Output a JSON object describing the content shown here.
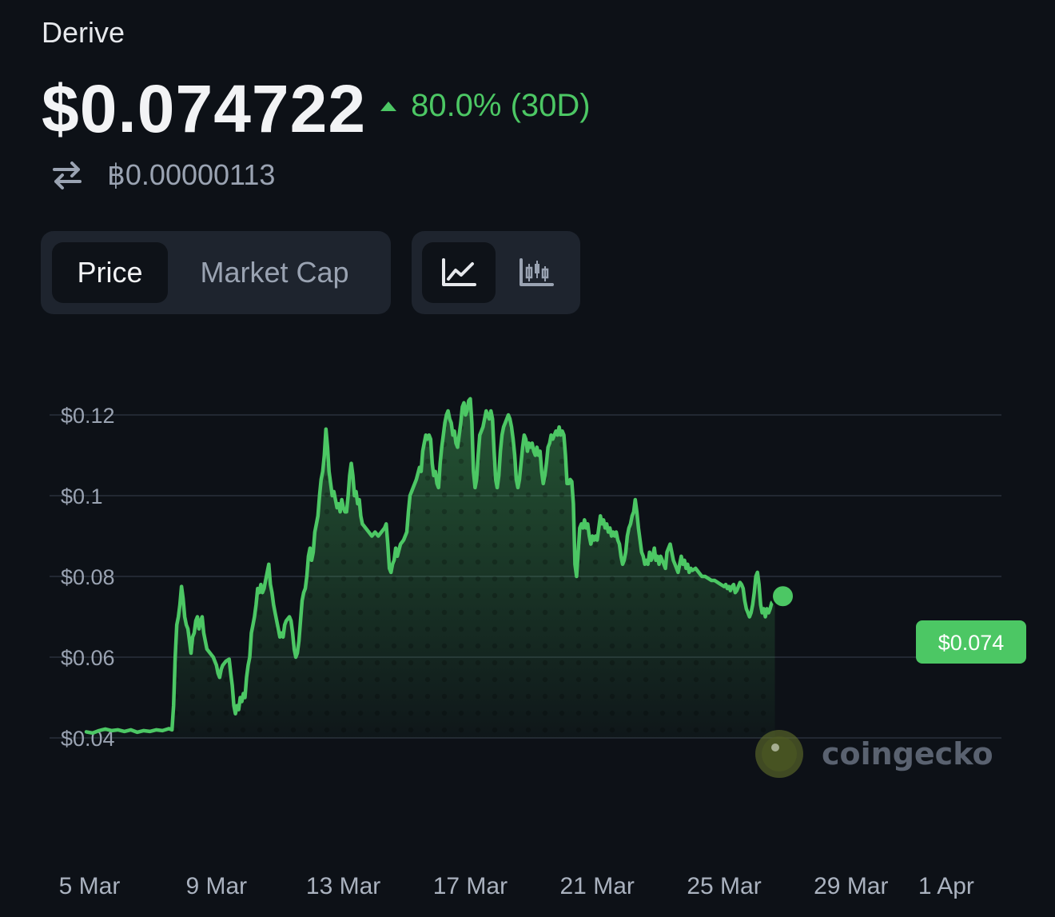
{
  "header": {
    "coin_name": "Derive",
    "price": "$0.074722",
    "change": "80.0% (30D)",
    "btc_price": "฿0.00000113"
  },
  "tabs": {
    "metric": [
      {
        "label": "Price",
        "active": true
      },
      {
        "label": "Market Cap",
        "active": false
      }
    ],
    "chart_type": [
      {
        "icon": "line-chart-icon",
        "active": true
      },
      {
        "icon": "candlestick-chart-icon",
        "active": false
      }
    ]
  },
  "watermark": "coingecko",
  "colors": {
    "accent": "#4cc764",
    "background": "#0d1117"
  },
  "chart_data": {
    "type": "area",
    "y_ticks": [
      {
        "value": 0.12,
        "label": "$0.12"
      },
      {
        "value": 0.1,
        "label": "$0.1"
      },
      {
        "value": 0.08,
        "label": "$0.08"
      },
      {
        "value": 0.06,
        "label": "$0.06"
      },
      {
        "value": 0.04,
        "label": "$0.04"
      }
    ],
    "x_ticks": [
      {
        "day": 0,
        "label": "5 Mar"
      },
      {
        "day": 4,
        "label": "9 Mar"
      },
      {
        "day": 8,
        "label": "13 Mar"
      },
      {
        "day": 12,
        "label": "17 Mar"
      },
      {
        "day": 16,
        "label": "21 Mar"
      },
      {
        "day": 20,
        "label": "25 Mar"
      },
      {
        "day": 24,
        "label": "29 Mar"
      },
      {
        "day": 27,
        "label": "1 Apr"
      }
    ],
    "ylim": [
      0.04,
      0.12
    ],
    "grid": true,
    "current_label": "$0.074",
    "points": [
      [
        -0.1,
        0.0415
      ],
      [
        0.1,
        0.0412
      ],
      [
        0.3,
        0.0418
      ],
      [
        0.5,
        0.0422
      ],
      [
        0.7,
        0.0418
      ],
      [
        0.9,
        0.042
      ],
      [
        1.1,
        0.0416
      ],
      [
        1.3,
        0.042
      ],
      [
        1.5,
        0.0414
      ],
      [
        1.7,
        0.0418
      ],
      [
        1.9,
        0.0416
      ],
      [
        2.1,
        0.042
      ],
      [
        2.3,
        0.0418
      ],
      [
        2.5,
        0.0423
      ],
      [
        2.6,
        0.042
      ],
      [
        2.65,
        0.048
      ],
      [
        2.7,
        0.06
      ],
      [
        2.75,
        0.068
      ],
      [
        2.8,
        0.07
      ],
      [
        2.85,
        0.073
      ],
      [
        2.9,
        0.0775
      ],
      [
        2.95,
        0.0745
      ],
      [
        3.0,
        0.07
      ],
      [
        3.05,
        0.068
      ],
      [
        3.1,
        0.067
      ],
      [
        3.15,
        0.064
      ],
      [
        3.2,
        0.061
      ],
      [
        3.25,
        0.065
      ],
      [
        3.3,
        0.066
      ],
      [
        3.35,
        0.069
      ],
      [
        3.4,
        0.07
      ],
      [
        3.45,
        0.067
      ],
      [
        3.5,
        0.069
      ],
      [
        3.55,
        0.07
      ],
      [
        3.6,
        0.066
      ],
      [
        3.65,
        0.064
      ],
      [
        3.7,
        0.062
      ],
      [
        3.8,
        0.061
      ],
      [
        3.9,
        0.06
      ],
      [
        4.0,
        0.058
      ],
      [
        4.05,
        0.056
      ],
      [
        4.1,
        0.055
      ],
      [
        4.15,
        0.057
      ],
      [
        4.2,
        0.058
      ],
      [
        4.3,
        0.059
      ],
      [
        4.4,
        0.0595
      ],
      [
        4.45,
        0.056
      ],
      [
        4.5,
        0.053
      ],
      [
        4.55,
        0.048
      ],
      [
        4.6,
        0.046
      ],
      [
        4.65,
        0.048
      ],
      [
        4.7,
        0.047
      ],
      [
        4.75,
        0.05
      ],
      [
        4.8,
        0.049
      ],
      [
        4.85,
        0.051
      ],
      [
        4.9,
        0.05
      ],
      [
        4.95,
        0.055
      ],
      [
        5.0,
        0.058
      ],
      [
        5.05,
        0.06
      ],
      [
        5.1,
        0.066
      ],
      [
        5.15,
        0.068
      ],
      [
        5.2,
        0.07
      ],
      [
        5.25,
        0.073
      ],
      [
        5.3,
        0.077
      ],
      [
        5.35,
        0.076
      ],
      [
        5.4,
        0.078
      ],
      [
        5.45,
        0.076
      ],
      [
        5.5,
        0.077
      ],
      [
        5.55,
        0.079
      ],
      [
        5.6,
        0.081
      ],
      [
        5.65,
        0.083
      ],
      [
        5.7,
        0.078
      ],
      [
        5.75,
        0.076
      ],
      [
        5.8,
        0.073
      ],
      [
        5.85,
        0.071
      ],
      [
        5.9,
        0.069
      ],
      [
        5.95,
        0.067
      ],
      [
        6.0,
        0.065
      ],
      [
        6.05,
        0.066
      ],
      [
        6.1,
        0.065
      ],
      [
        6.15,
        0.068
      ],
      [
        6.2,
        0.069
      ],
      [
        6.3,
        0.07
      ],
      [
        6.35,
        0.069
      ],
      [
        6.4,
        0.066
      ],
      [
        6.45,
        0.062
      ],
      [
        6.5,
        0.06
      ],
      [
        6.55,
        0.061
      ],
      [
        6.6,
        0.064
      ],
      [
        6.65,
        0.069
      ],
      [
        6.7,
        0.074
      ],
      [
        6.75,
        0.076
      ],
      [
        6.8,
        0.077
      ],
      [
        6.85,
        0.08
      ],
      [
        6.9,
        0.085
      ],
      [
        6.95,
        0.087
      ],
      [
        7.0,
        0.084
      ],
      [
        7.05,
        0.086
      ],
      [
        7.1,
        0.091
      ],
      [
        7.15,
        0.093
      ],
      [
        7.2,
        0.095
      ],
      [
        7.25,
        0.1
      ],
      [
        7.3,
        0.104
      ],
      [
        7.35,
        0.106
      ],
      [
        7.4,
        0.11
      ],
      [
        7.45,
        0.1165
      ],
      [
        7.5,
        0.112
      ],
      [
        7.55,
        0.106
      ],
      [
        7.6,
        0.103
      ],
      [
        7.65,
        0.1
      ],
      [
        7.7,
        0.101
      ],
      [
        7.75,
        0.099
      ],
      [
        7.8,
        0.097
      ],
      [
        7.85,
        0.098
      ],
      [
        7.9,
        0.096
      ],
      [
        7.95,
        0.099
      ],
      [
        8.0,
        0.097
      ],
      [
        8.05,
        0.096
      ],
      [
        8.1,
        0.096
      ],
      [
        8.15,
        0.1
      ],
      [
        8.2,
        0.105
      ],
      [
        8.25,
        0.108
      ],
      [
        8.3,
        0.105
      ],
      [
        8.35,
        0.1
      ],
      [
        8.4,
        0.101
      ],
      [
        8.45,
        0.098
      ],
      [
        8.5,
        0.099
      ],
      [
        8.55,
        0.095
      ],
      [
        8.6,
        0.093
      ],
      [
        8.7,
        0.092
      ],
      [
        8.8,
        0.091
      ],
      [
        8.9,
        0.09
      ],
      [
        9.0,
        0.091
      ],
      [
        9.1,
        0.09
      ],
      [
        9.2,
        0.091
      ],
      [
        9.3,
        0.092
      ],
      [
        9.35,
        0.093
      ],
      [
        9.4,
        0.088
      ],
      [
        9.45,
        0.082
      ],
      [
        9.5,
        0.081
      ],
      [
        9.55,
        0.083
      ],
      [
        9.6,
        0.084
      ],
      [
        9.65,
        0.087
      ],
      [
        9.7,
        0.085
      ],
      [
        9.8,
        0.088
      ],
      [
        9.9,
        0.089
      ],
      [
        10.0,
        0.091
      ],
      [
        10.05,
        0.096
      ],
      [
        10.1,
        0.1
      ],
      [
        10.2,
        0.102
      ],
      [
        10.3,
        0.104
      ],
      [
        10.4,
        0.107
      ],
      [
        10.45,
        0.106
      ],
      [
        10.5,
        0.111
      ],
      [
        10.55,
        0.113
      ],
      [
        10.6,
        0.115
      ],
      [
        10.65,
        0.114
      ],
      [
        10.7,
        0.115
      ],
      [
        10.75,
        0.114
      ],
      [
        10.8,
        0.108
      ],
      [
        10.85,
        0.105
      ],
      [
        10.9,
        0.106
      ],
      [
        10.95,
        0.103
      ],
      [
        11.0,
        0.102
      ],
      [
        11.05,
        0.108
      ],
      [
        11.1,
        0.112
      ],
      [
        11.15,
        0.115
      ],
      [
        11.2,
        0.118
      ],
      [
        11.25,
        0.12
      ],
      [
        11.3,
        0.121
      ],
      [
        11.35,
        0.119
      ],
      [
        11.4,
        0.118
      ],
      [
        11.45,
        0.115
      ],
      [
        11.5,
        0.116
      ],
      [
        11.55,
        0.113
      ],
      [
        11.6,
        0.112
      ],
      [
        11.65,
        0.115
      ],
      [
        11.7,
        0.118
      ],
      [
        11.75,
        0.122
      ],
      [
        11.8,
        0.123
      ],
      [
        11.85,
        0.12
      ],
      [
        11.9,
        0.121
      ],
      [
        11.95,
        0.1235
      ],
      [
        12.0,
        0.124
      ],
      [
        12.05,
        0.118
      ],
      [
        12.1,
        0.106
      ],
      [
        12.15,
        0.102
      ],
      [
        12.2,
        0.104
      ],
      [
        12.25,
        0.11
      ],
      [
        12.3,
        0.115
      ],
      [
        12.35,
        0.116
      ],
      [
        12.4,
        0.117
      ],
      [
        12.45,
        0.119
      ],
      [
        12.5,
        0.121
      ],
      [
        12.55,
        0.12
      ],
      [
        12.6,
        0.119
      ],
      [
        12.65,
        0.121
      ],
      [
        12.7,
        0.119
      ],
      [
        12.75,
        0.111
      ],
      [
        12.8,
        0.104
      ],
      [
        12.85,
        0.102
      ],
      [
        12.9,
        0.105
      ],
      [
        12.95,
        0.111
      ],
      [
        13.0,
        0.115
      ],
      [
        13.05,
        0.117
      ],
      [
        13.1,
        0.118
      ],
      [
        13.15,
        0.119
      ],
      [
        13.2,
        0.12
      ],
      [
        13.25,
        0.119
      ],
      [
        13.3,
        0.117
      ],
      [
        13.35,
        0.114
      ],
      [
        13.4,
        0.11
      ],
      [
        13.45,
        0.104
      ],
      [
        13.5,
        0.102
      ],
      [
        13.55,
        0.104
      ],
      [
        13.6,
        0.108
      ],
      [
        13.65,
        0.112
      ],
      [
        13.7,
        0.115
      ],
      [
        13.75,
        0.114
      ],
      [
        13.8,
        0.111
      ],
      [
        13.85,
        0.113
      ],
      [
        13.9,
        0.112
      ],
      [
        13.95,
        0.113
      ],
      [
        14.0,
        0.111
      ],
      [
        14.05,
        0.11
      ],
      [
        14.1,
        0.112
      ],
      [
        14.15,
        0.11
      ],
      [
        14.2,
        0.111
      ],
      [
        14.25,
        0.106
      ],
      [
        14.3,
        0.103
      ],
      [
        14.35,
        0.105
      ],
      [
        14.4,
        0.108
      ],
      [
        14.45,
        0.112
      ],
      [
        14.5,
        0.113
      ],
      [
        14.55,
        0.115
      ],
      [
        14.6,
        0.114
      ],
      [
        14.65,
        0.115
      ],
      [
        14.7,
        0.116
      ],
      [
        14.75,
        0.115
      ],
      [
        14.8,
        0.117
      ],
      [
        14.85,
        0.115
      ],
      [
        14.9,
        0.116
      ],
      [
        14.95,
        0.115
      ],
      [
        15.0,
        0.11
      ],
      [
        15.05,
        0.103
      ],
      [
        15.1,
        0.103
      ],
      [
        15.15,
        0.104
      ],
      [
        15.2,
        0.1035
      ],
      [
        15.25,
        0.098
      ],
      [
        15.3,
        0.083
      ],
      [
        15.35,
        0.08
      ],
      [
        15.4,
        0.086
      ],
      [
        15.45,
        0.092
      ],
      [
        15.5,
        0.093
      ],
      [
        15.55,
        0.092
      ],
      [
        15.6,
        0.094
      ],
      [
        15.65,
        0.092
      ],
      [
        15.7,
        0.093
      ],
      [
        15.75,
        0.09
      ],
      [
        15.8,
        0.088
      ],
      [
        15.85,
        0.09
      ],
      [
        15.9,
        0.089
      ],
      [
        15.95,
        0.09
      ],
      [
        16.0,
        0.089
      ],
      [
        16.05,
        0.092
      ],
      [
        16.1,
        0.095
      ],
      [
        16.15,
        0.093
      ],
      [
        16.2,
        0.094
      ],
      [
        16.25,
        0.092
      ],
      [
        16.3,
        0.093
      ],
      [
        16.35,
        0.091
      ],
      [
        16.4,
        0.092
      ],
      [
        16.45,
        0.09
      ],
      [
        16.5,
        0.091
      ],
      [
        16.55,
        0.09
      ],
      [
        16.6,
        0.091
      ],
      [
        16.65,
        0.089
      ],
      [
        16.7,
        0.088
      ],
      [
        16.75,
        0.085
      ],
      [
        16.8,
        0.083
      ],
      [
        16.85,
        0.084
      ],
      [
        16.9,
        0.086
      ],
      [
        16.95,
        0.09
      ],
      [
        17.0,
        0.092
      ],
      [
        17.05,
        0.093
      ],
      [
        17.1,
        0.095
      ],
      [
        17.15,
        0.096
      ],
      [
        17.2,
        0.099
      ],
      [
        17.25,
        0.096
      ],
      [
        17.3,
        0.092
      ],
      [
        17.35,
        0.089
      ],
      [
        17.4,
        0.086
      ],
      [
        17.45,
        0.085
      ],
      [
        17.5,
        0.083
      ],
      [
        17.55,
        0.084
      ],
      [
        17.6,
        0.083
      ],
      [
        17.65,
        0.086
      ],
      [
        17.7,
        0.084
      ],
      [
        17.75,
        0.085
      ],
      [
        17.8,
        0.087
      ],
      [
        17.85,
        0.084
      ],
      [
        17.9,
        0.085
      ],
      [
        17.95,
        0.083
      ],
      [
        18.0,
        0.085
      ],
      [
        18.05,
        0.084
      ],
      [
        18.1,
        0.083
      ],
      [
        18.15,
        0.082
      ],
      [
        18.2,
        0.086
      ],
      [
        18.25,
        0.087
      ],
      [
        18.3,
        0.088
      ],
      [
        18.35,
        0.086
      ],
      [
        18.4,
        0.084
      ],
      [
        18.45,
        0.083
      ],
      [
        18.5,
        0.082
      ],
      [
        18.55,
        0.081
      ],
      [
        18.6,
        0.083
      ],
      [
        18.65,
        0.085
      ],
      [
        18.7,
        0.083
      ],
      [
        18.75,
        0.084
      ],
      [
        18.8,
        0.082
      ],
      [
        18.85,
        0.083
      ],
      [
        18.9,
        0.081
      ],
      [
        18.95,
        0.082
      ],
      [
        19.0,
        0.0815
      ],
      [
        19.1,
        0.082
      ],
      [
        19.2,
        0.081
      ],
      [
        19.3,
        0.08
      ],
      [
        19.4,
        0.08
      ],
      [
        19.5,
        0.0795
      ],
      [
        19.6,
        0.079
      ],
      [
        19.7,
        0.079
      ],
      [
        19.8,
        0.0785
      ],
      [
        19.9,
        0.078
      ],
      [
        20.0,
        0.0775
      ],
      [
        20.05,
        0.078
      ],
      [
        20.1,
        0.077
      ],
      [
        20.15,
        0.0775
      ],
      [
        20.2,
        0.0765
      ],
      [
        20.25,
        0.0775
      ],
      [
        20.3,
        0.078
      ],
      [
        20.35,
        0.076
      ],
      [
        20.4,
        0.0765
      ],
      [
        20.45,
        0.0775
      ],
      [
        20.5,
        0.0785
      ],
      [
        20.55,
        0.078
      ],
      [
        20.6,
        0.077
      ],
      [
        20.65,
        0.074
      ],
      [
        20.7,
        0.072
      ],
      [
        20.75,
        0.071
      ],
      [
        20.8,
        0.07
      ],
      [
        20.85,
        0.071
      ],
      [
        20.9,
        0.073
      ],
      [
        20.95,
        0.076
      ],
      [
        21.0,
        0.08
      ],
      [
        21.05,
        0.081
      ],
      [
        21.1,
        0.078
      ],
      [
        21.15,
        0.073
      ],
      [
        21.2,
        0.071
      ],
      [
        21.25,
        0.072
      ],
      [
        21.3,
        0.07
      ],
      [
        21.35,
        0.072
      ],
      [
        21.4,
        0.071
      ],
      [
        21.45,
        0.072
      ],
      [
        21.5,
        0.0735
      ],
      [
        21.55,
        0.074
      ],
      [
        21.6,
        0.0747
      ]
    ],
    "last_point": {
      "day": 21.6,
      "value": 0.0747
    }
  }
}
